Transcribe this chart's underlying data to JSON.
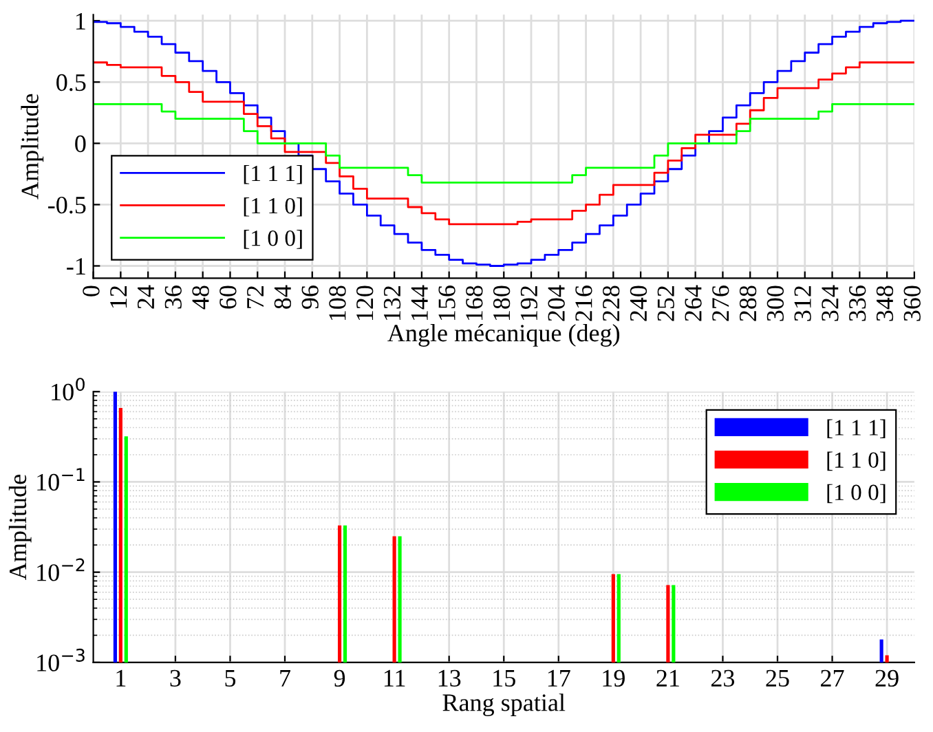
{
  "chart_data": [
    {
      "type": "step",
      "xlabel": "Angle mécanique (deg)",
      "ylabel": "Amplitude",
      "xlim": [
        0,
        360
      ],
      "xticks": [
        0,
        12,
        24,
        36,
        48,
        60,
        72,
        84,
        96,
        108,
        120,
        132,
        144,
        156,
        168,
        180,
        192,
        204,
        216,
        228,
        240,
        252,
        264,
        276,
        288,
        300,
        312,
        324,
        336,
        348,
        360
      ],
      "ylim": [
        -1.1,
        1.05
      ],
      "yticks": [
        {
          "value": -1,
          "label": "-1"
        },
        {
          "value": -0.5,
          "label": "-0.5"
        },
        0,
        0.5,
        1
      ],
      "grid": true,
      "legend": "bottom left",
      "line_style": "solid",
      "marker": "none",
      "series": [
        {
          "name": "[1 1 1]",
          "color": "#0000ff",
          "x": [
            0,
            6,
            12,
            18,
            24,
            30,
            36,
            42,
            48,
            54,
            60,
            66,
            72,
            78,
            84,
            90,
            96,
            102,
            108,
            114,
            120,
            126,
            132,
            138,
            144,
            150,
            156,
            162,
            168,
            174,
            180,
            186,
            192,
            198,
            204,
            210,
            216,
            222,
            228,
            234,
            240,
            246,
            252,
            258,
            264,
            270,
            276,
            282,
            288,
            294,
            300,
            306,
            312,
            318,
            324,
            330,
            336,
            342,
            348,
            354,
            360
          ],
          "values": [
            0.99,
            0.98,
            0.95,
            0.91,
            0.87,
            0.81,
            0.74,
            0.67,
            0.59,
            0.5,
            0.41,
            0.31,
            0.21,
            0.1,
            0,
            -0.1,
            -0.21,
            -0.31,
            -0.41,
            -0.5,
            -0.59,
            -0.67,
            -0.74,
            -0.81,
            -0.87,
            -0.91,
            -0.95,
            -0.98,
            -0.99,
            -1,
            -0.99,
            -0.98,
            -0.95,
            -0.91,
            -0.87,
            -0.81,
            -0.74,
            -0.67,
            -0.59,
            -0.5,
            -0.41,
            -0.31,
            -0.21,
            -0.1,
            0,
            0.1,
            0.21,
            0.31,
            0.41,
            0.5,
            0.59,
            0.67,
            0.74,
            0.81,
            0.87,
            0.91,
            0.95,
            0.98,
            0.99,
            1,
            1
          ]
        },
        {
          "name": "[1 1 0]",
          "color": "#ff0000",
          "x": [
            0,
            6,
            12,
            30,
            36,
            42,
            48,
            66,
            72,
            78,
            84,
            102,
            108,
            114,
            120,
            138,
            144,
            150,
            156,
            186,
            192,
            210,
            216,
            222,
            228,
            246,
            252,
            258,
            264,
            282,
            288,
            294,
            300,
            318,
            324,
            330,
            336,
            360
          ],
          "values": [
            0.66,
            0.64,
            0.62,
            0.55,
            0.5,
            0.42,
            0.34,
            0.24,
            0.14,
            0.04,
            -0.07,
            -0.16,
            -0.27,
            -0.37,
            -0.45,
            -0.52,
            -0.57,
            -0.62,
            -0.66,
            -0.64,
            -0.62,
            -0.55,
            -0.5,
            -0.42,
            -0.34,
            -0.24,
            -0.14,
            -0.04,
            0.07,
            0.16,
            0.27,
            0.37,
            0.45,
            0.52,
            0.57,
            0.62,
            0.66,
            0.66
          ]
        },
        {
          "name": "[1 0 0]",
          "color": "#00ff00",
          "x": [
            0,
            30,
            36,
            66,
            72,
            102,
            108,
            138,
            144,
            210,
            216,
            246,
            252,
            282,
            288,
            318,
            324,
            360
          ],
          "values": [
            0.32,
            0.26,
            0.2,
            0.1,
            0,
            -0.1,
            -0.2,
            -0.26,
            -0.32,
            -0.26,
            -0.2,
            -0.1,
            0,
            0.1,
            0.2,
            0.26,
            0.32,
            0.32
          ]
        }
      ]
    },
    {
      "type": "bar",
      "xlabel": "Rang spatial",
      "ylabel": "Amplitude",
      "log": "y",
      "categories": [
        "1",
        "3",
        "5",
        "7",
        "9",
        "11",
        "13",
        "15",
        "17",
        "19",
        "21",
        "23",
        "25",
        "27",
        "29"
      ],
      "ylim": [
        0.001,
        1
      ],
      "yticks": [
        {
          "value": 0.001,
          "label": "10$^{−3}$"
        },
        {
          "value": 0.01,
          "label": "10$^{−2}$"
        },
        {
          "value": 0.1,
          "label": "10$^{−1}$"
        },
        {
          "value": 1,
          "label": "10$^{0}$"
        }
      ],
      "grid": true,
      "legend": "top right",
      "series": [
        {
          "name": "[1 1 1]",
          "color": "#0000ff",
          "values": [
            1,
            null,
            null,
            null,
            null,
            null,
            null,
            null,
            null,
            null,
            null,
            null,
            null,
            null,
            0.0018
          ]
        },
        {
          "name": "[1 1 0]",
          "color": "#ff0000",
          "values": [
            0.66,
            null,
            null,
            null,
            0.033,
            0.025,
            null,
            null,
            null,
            0.0095,
            0.0072,
            null,
            null,
            null,
            0.0012
          ]
        },
        {
          "name": "[1 0 0]",
          "color": "#00ff00",
          "values": [
            0.32,
            null,
            null,
            null,
            0.033,
            0.025,
            null,
            null,
            null,
            0.0095,
            0.0072,
            null,
            null,
            null,
            null
          ]
        }
      ]
    }
  ]
}
